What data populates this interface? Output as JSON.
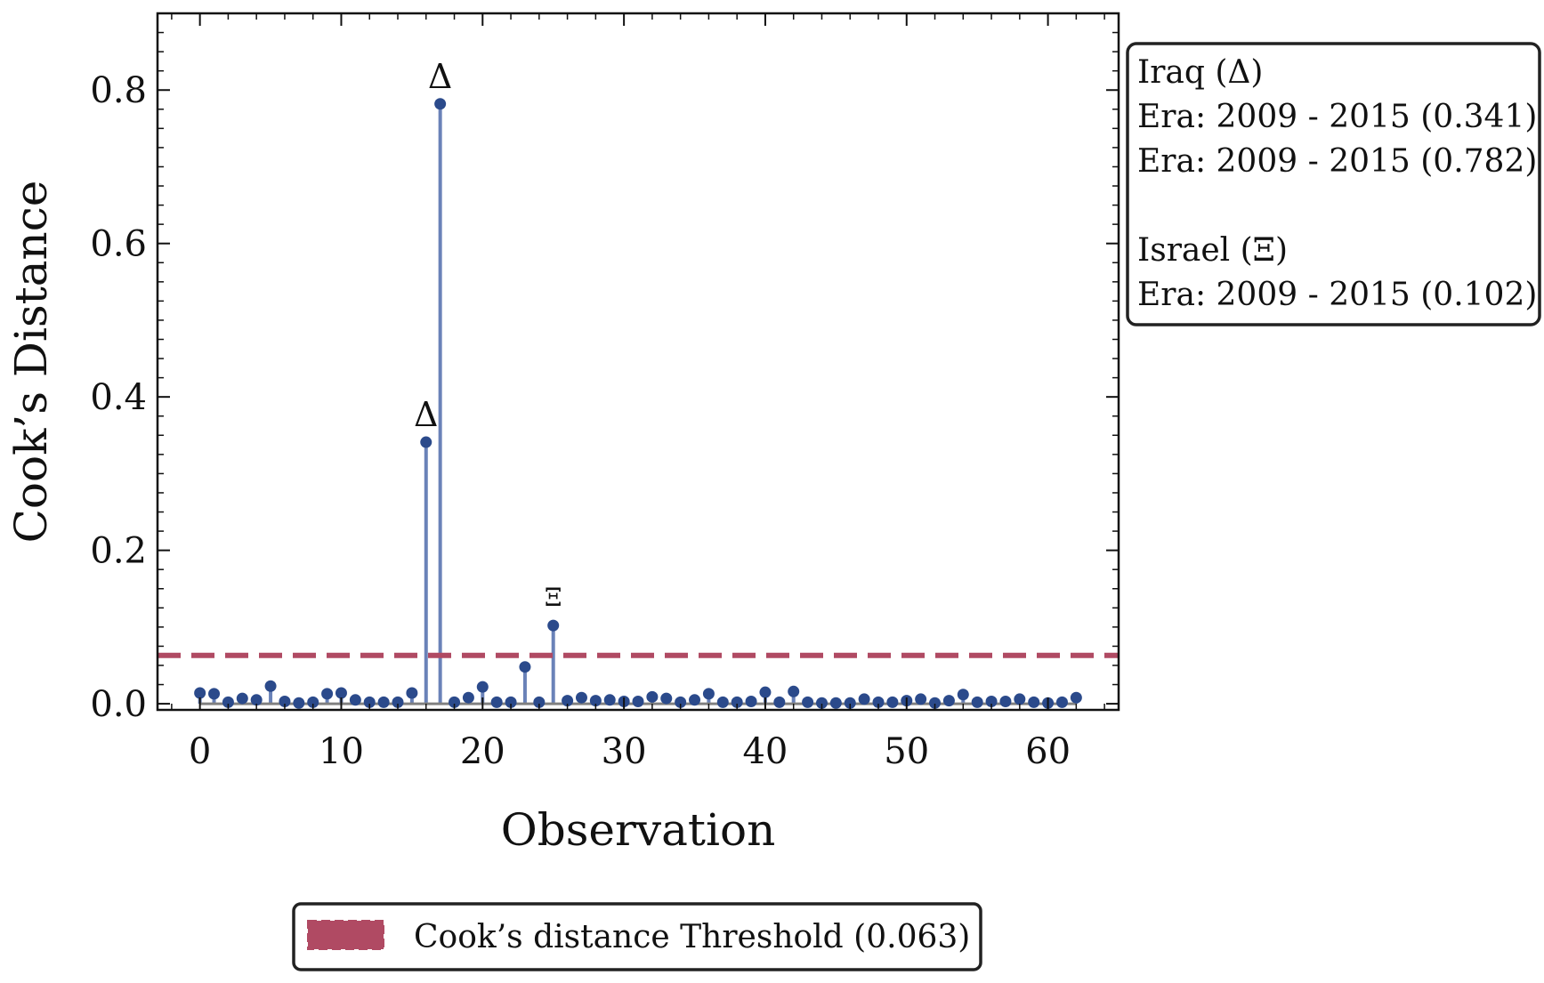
{
  "chart_data": {
    "type": "scatter",
    "xlabel": "Observation",
    "ylabel": "Cook’s Distance",
    "xlim": [
      -3,
      65
    ],
    "ylim": [
      -0.008,
      0.9
    ],
    "xticks": [
      0,
      10,
      20,
      30,
      40,
      50,
      60
    ],
    "yticks": [
      0.0,
      0.2,
      0.4,
      0.6,
      0.8
    ],
    "xtick_labels": [
      "0",
      "10",
      "20",
      "30",
      "40",
      "50",
      "60"
    ],
    "ytick_labels": [
      "0.0",
      "0.2",
      "0.4",
      "0.6",
      "0.8"
    ],
    "grid": false,
    "series": [
      {
        "x": [
          0,
          1,
          2,
          3,
          4,
          5,
          6,
          7,
          8,
          9,
          10,
          11,
          12,
          13,
          14,
          15,
          16,
          17,
          18,
          19,
          20,
          21,
          22,
          23,
          24,
          25,
          26,
          27,
          28,
          29,
          30,
          31,
          32,
          33,
          34,
          35,
          36,
          37,
          38,
          39,
          40,
          41,
          42,
          43,
          44,
          45,
          46,
          47,
          48,
          49,
          50,
          51,
          52,
          53,
          54,
          55,
          56,
          57,
          58,
          59,
          60,
          61,
          62
        ],
        "values": [
          0.014,
          0.013,
          0.002,
          0.007,
          0.005,
          0.023,
          0.003,
          0.001,
          0.002,
          0.013,
          0.014,
          0.005,
          0.002,
          0.002,
          0.002,
          0.014,
          0.341,
          0.782,
          0.002,
          0.008,
          0.022,
          0.002,
          0.002,
          0.048,
          0.002,
          0.102,
          0.004,
          0.008,
          0.004,
          0.005,
          0.003,
          0.003,
          0.009,
          0.007,
          0.002,
          0.005,
          0.013,
          0.002,
          0.002,
          0.003,
          0.015,
          0.002,
          0.016,
          0.002,
          0.001,
          0.001,
          0.001,
          0.006,
          0.002,
          0.002,
          0.004,
          0.006,
          0.001,
          0.004,
          0.012,
          0.002,
          0.003,
          0.003,
          0.006,
          0.002,
          0.001,
          0.002,
          0.008
        ]
      }
    ],
    "threshold": {
      "value": 0.063,
      "label": "Cook’s distance Threshold (0.063)"
    },
    "annotations": [
      {
        "x": 16,
        "y": 0.341,
        "label": "Δ"
      },
      {
        "x": 17,
        "y": 0.782,
        "label": "Δ"
      },
      {
        "x": 25,
        "y": 0.102,
        "label": "Ξ"
      }
    ],
    "note_lines": [
      "Iraq (Δ)",
      "Era: 2009 - 2015 (0.341)",
      "Era: 2009 - 2015 (0.782)",
      "",
      "Israel (Ξ)",
      "Era: 2009 - 2015 (0.102)"
    ],
    "legend_position": "bottom",
    "colors": {
      "point": "#2b4a8b",
      "stem": "#6a82b8",
      "baseline": "#808080",
      "threshold": "#b04a63"
    }
  }
}
